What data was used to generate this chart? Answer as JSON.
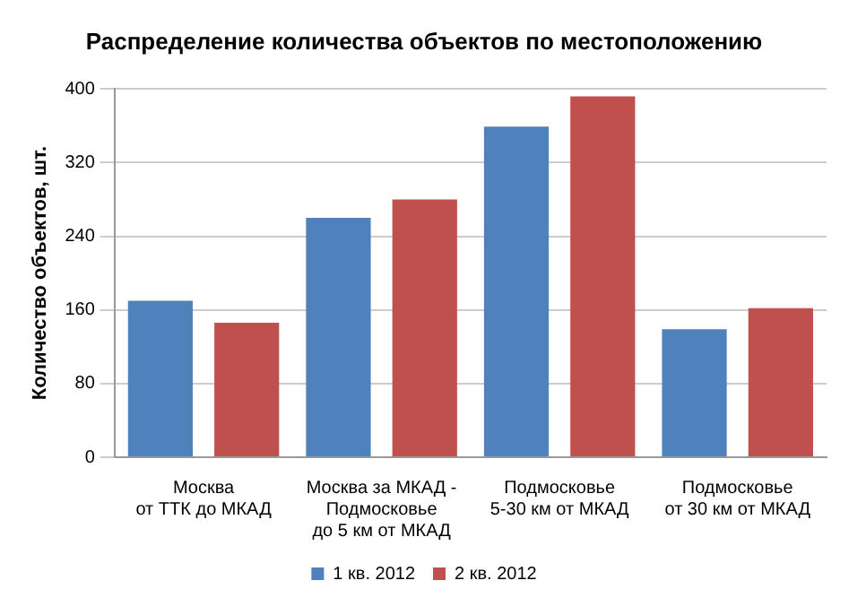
{
  "chart_data": {
    "type": "bar",
    "title": "Распределение количества объектов по местоположению",
    "ylabel": "Количество объектов, шт.",
    "categories": [
      "Москва\nот ТТК до МКАД",
      "Москва за МКАД -\nПодмосковье\nдо 5 км от МКАД",
      "Подмосковье\n5-30 км от МКАД",
      "Подмосковье\nот 30 км от МКАД"
    ],
    "series": [
      {
        "name": "1 кв. 2012",
        "color": "#4f81bd",
        "values": [
          170,
          260,
          359,
          139
        ]
      },
      {
        "name": "2 кв. 2012",
        "color": "#c0504d",
        "values": [
          146,
          280,
          392,
          162
        ]
      }
    ],
    "ylim": [
      0,
      400
    ],
    "yticks": [
      0,
      80,
      160,
      240,
      320,
      400
    ],
    "grid": "y",
    "legend": "bottom"
  }
}
